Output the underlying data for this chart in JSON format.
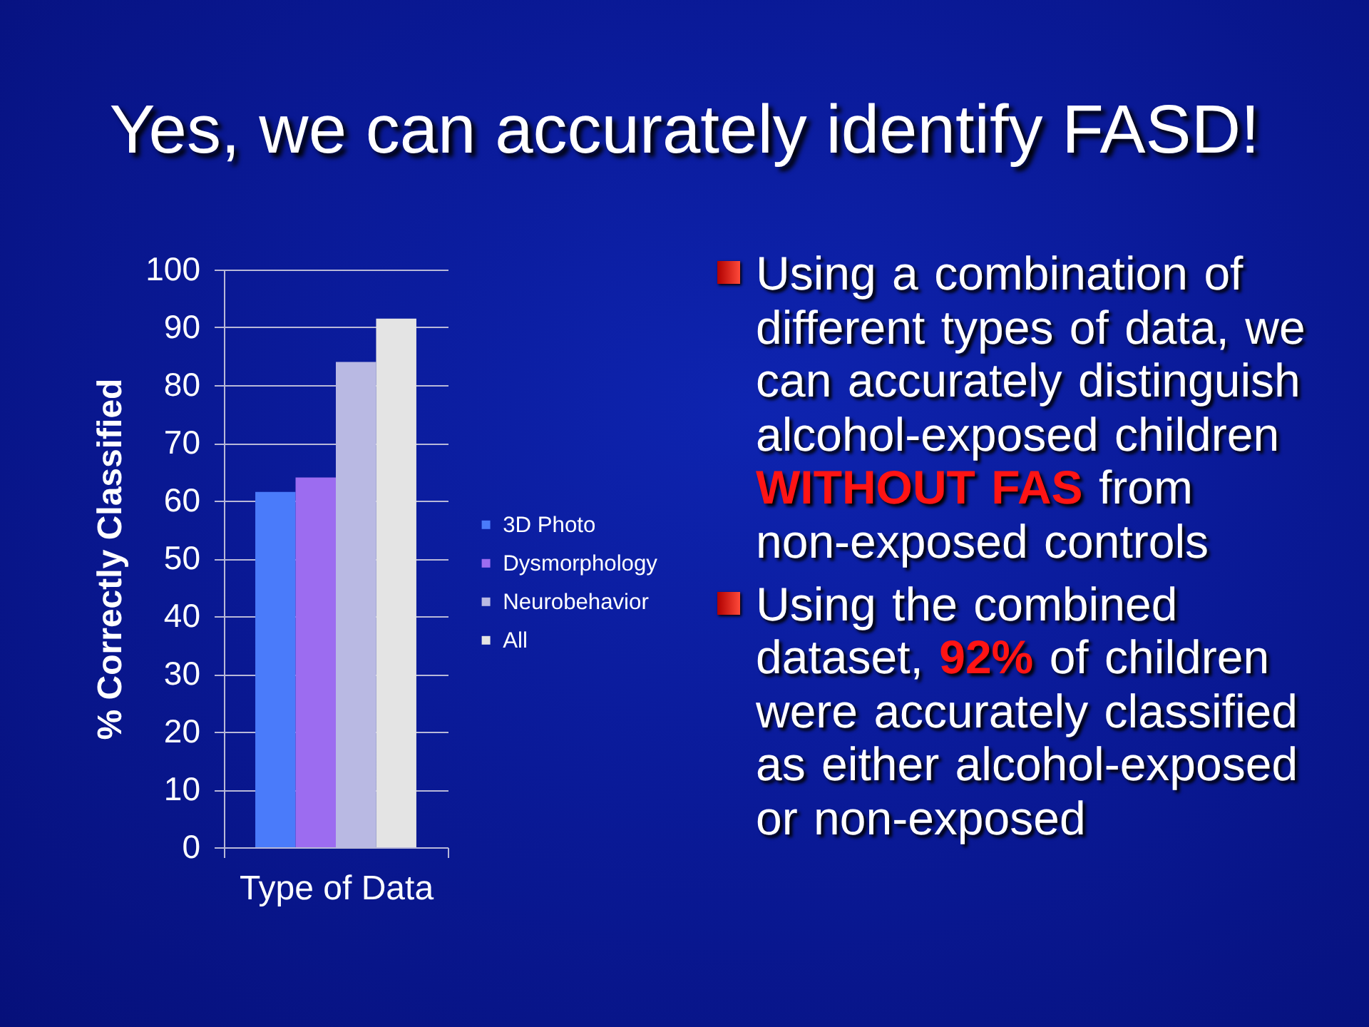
{
  "chart_data": {
    "type": "bar",
    "title": "Yes, we can accurately identify FASD!",
    "ylabel": "% Correctly Classified",
    "categories": [
      "Type of Data"
    ],
    "series": [
      {
        "name": "3D Photo",
        "color": "#4a7bfa",
        "values": [
          61.5
        ]
      },
      {
        "name": "Dysmorphology",
        "color": "#9c6cf0",
        "values": [
          64
        ]
      },
      {
        "name": "Neurobehavior",
        "color": "#b9b9e3",
        "values": [
          84
        ]
      },
      {
        "name": "All",
        "color": "#e4e4e4",
        "values": [
          91.5
        ]
      }
    ],
    "ylim": [
      0,
      100
    ],
    "yticks": [
      0,
      10,
      20,
      30,
      40,
      50,
      60,
      70,
      80,
      90,
      100
    ],
    "grid": "y",
    "legend": "right",
    "annotations": [
      "Using a combination of different types of data, we can accurately distinguish alcohol-exposed children WITHOUT FAS from non-exposed controls",
      "Using the combined dataset, 92% of children were accurately classified as either alcohol-exposed or non-exposed"
    ]
  }
}
